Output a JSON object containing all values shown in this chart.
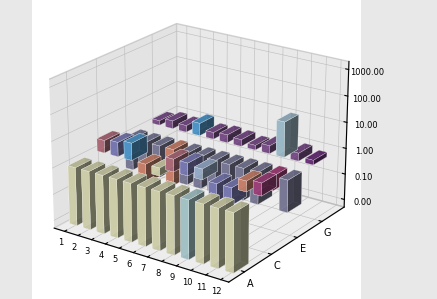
{
  "x_labels": [
    "1",
    "2",
    "3",
    "4",
    "5",
    "6",
    "7",
    "8",
    "9",
    "10",
    "11",
    "12"
  ],
  "z_labels": [
    "A",
    "C",
    "E",
    "G"
  ],
  "values": {
    "A": [
      0.006,
      0.006,
      0.006,
      0.006,
      0.006,
      0.006,
      0.006,
      0.006,
      0.006,
      0.006,
      0.006,
      0.006
    ],
    "C": [
      3.0,
      3.5,
      4.5,
      0.18,
      0.5,
      3.0,
      3.0,
      2.5,
      0.22,
      0.22,
      2.5,
      3.0
    ],
    "E": [
      0.06,
      0.06,
      0.06,
      0.04,
      0.06,
      0.06,
      0.06,
      0.06,
      0.06,
      0.06,
      0.28,
      0.06
    ],
    "G": [
      1.5,
      2.0,
      1.8,
      3.0,
      1.8,
      2.0,
      1.8,
      1.5,
      2.0,
      22.0,
      2.0,
      1.5
    ]
  },
  "bar_colors": {
    "A": [
      "#e8e8c0",
      "#e8e8c0",
      "#e8e8c0",
      "#e8e8c0",
      "#e8e8c0",
      "#e8e8c0",
      "#e8e8c0",
      "#e8e8c0",
      "#b8dce0",
      "#e8e8c0",
      "#e8e8c0",
      "#e8e8c0"
    ],
    "C": [
      "#c07888",
      "#8888c8",
      "#58a8e0",
      "#e09078",
      "#e8e8c0",
      "#c07888",
      "#8888c8",
      "#a8c0e0",
      "#8888c8",
      "#8888c8",
      "#e09078",
      "#b04888"
    ],
    "E": [
      "#8888a8",
      "#8888a8",
      "#8888a8",
      "#e09078",
      "#8888a8",
      "#8888a8",
      "#8888a8",
      "#8888a8",
      "#8888a8",
      "#8888a8",
      "#b84888",
      "#8888a8"
    ],
    "G": [
      "#885898",
      "#885898",
      "#885898",
      "#58a8e0",
      "#885898",
      "#885898",
      "#885898",
      "#885898",
      "#885898",
      "#b0d0e0",
      "#885898",
      "#783888"
    ]
  },
  "log_floor": -2.3,
  "log_ceil": 3.3,
  "ztick_vals": [
    -2.0,
    -1.0,
    0.0,
    1.0,
    2.0,
    3.0
  ],
  "ztick_labels": [
    "0.00",
    "0.10",
    "1.00",
    "10.00",
    "100.00",
    "1000.00"
  ],
  "elev": 22,
  "azim": -55,
  "bar_width": 0.55,
  "bar_depth": 0.55,
  "fig_facecolor": "#e8e8e8",
  "pane_x_color": "#c8c8c8",
  "pane_y_color": "#d4d4d4",
  "pane_z_color": "#dcdcdc"
}
